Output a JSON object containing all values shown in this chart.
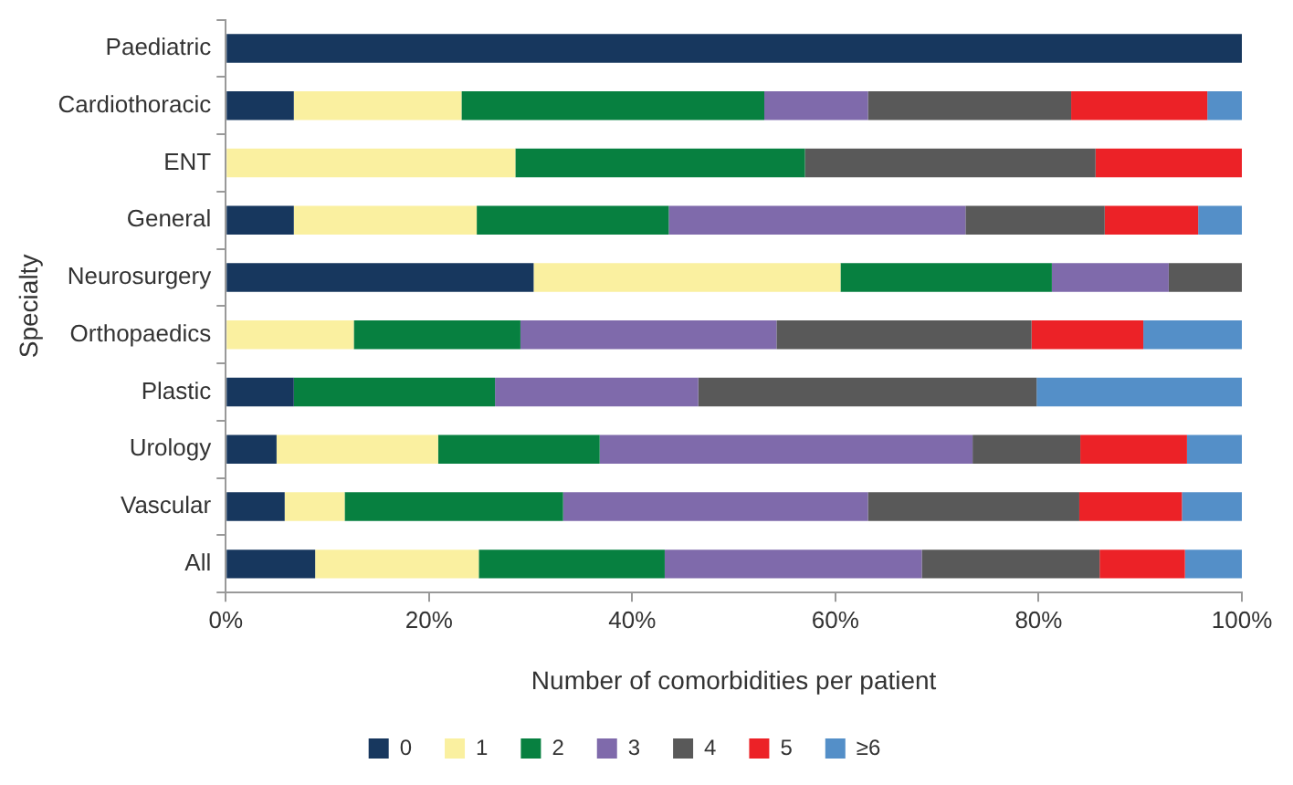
{
  "chart_data": {
    "type": "bar",
    "orientation": "horizontal",
    "stacked": true,
    "xlabel": "Number of comorbidities per patient",
    "ylabel": "Specialty",
    "categories": [
      "Paediatric",
      "Cardiothoracic",
      "ENT",
      "General",
      "Neurosurgery",
      "Orthopaedics",
      "Plastic",
      "Urology",
      "Vascular",
      "All"
    ],
    "series": [
      {
        "name": "0",
        "color": "#17375e",
        "values": [
          100,
          6.7,
          0,
          6.7,
          30.3,
          0,
          6.7,
          5,
          5.8,
          8.8
        ]
      },
      {
        "name": "1",
        "color": "#faf0a0",
        "values": [
          0,
          16.5,
          28.5,
          18,
          30.2,
          12.6,
          0,
          15.9,
          5.9,
          16.1
        ]
      },
      {
        "name": "2",
        "color": "#078040",
        "values": [
          0,
          29.8,
          28.5,
          18.9,
          20.8,
          16.4,
          19.8,
          15.9,
          21.5,
          18.3
        ]
      },
      {
        "name": "3",
        "color": "#7f6aab",
        "values": [
          0,
          10.2,
          0,
          29.2,
          11.5,
          25.2,
          20,
          36.7,
          30,
          25.3
        ]
      },
      {
        "name": "4",
        "color": "#595959",
        "values": [
          0,
          20,
          28.6,
          13.7,
          7.2,
          25.1,
          33.3,
          10.6,
          20.8,
          17.5
        ]
      },
      {
        "name": "5",
        "color": "#ec2227",
        "values": [
          0,
          13.4,
          14.4,
          9.2,
          0,
          11,
          0,
          10.5,
          10.1,
          8.4
        ]
      },
      {
        "name": "≥6",
        "color": "#548fc8",
        "values": [
          0,
          3.4,
          0,
          4.3,
          0,
          9.7,
          20.2,
          5.4,
          5.9,
          5.6
        ]
      }
    ],
    "xlim": [
      0,
      100
    ],
    "xticks": [
      {
        "value": 0,
        "label": "0%"
      },
      {
        "value": 20,
        "label": "20%"
      },
      {
        "value": 40,
        "label": "40%"
      },
      {
        "value": 60,
        "label": "60%"
      },
      {
        "value": 80,
        "label": "80%"
      },
      {
        "value": 100,
        "label": "100%"
      }
    ],
    "grid": false,
    "legend": "bottom"
  }
}
